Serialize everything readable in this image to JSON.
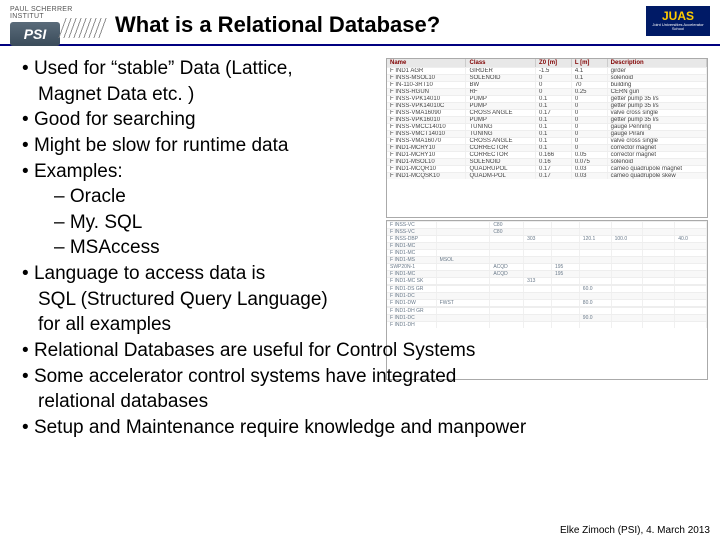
{
  "header": {
    "psi_small": "PAUL SCHERRER INSTITUT",
    "psi_mark": "PSI",
    "title": "What is a Relational Database?",
    "juas": "JUAS",
    "juas_sub": "Joint Universities Accelerator School"
  },
  "bullets": {
    "p1a": "Used for “stable” Data (Lattice,",
    "p1b": "Magnet Data etc. )",
    "p2": "Good for searching",
    "p3": "Might be slow for runtime data",
    "p4": "Examples:",
    "p4a": "Oracle",
    "p4b": "My. SQL",
    "p4c": "MSAccess",
    "p5a": "Language to access data is",
    "p5b": "SQL (Structured Query Language)",
    "p5c": "for all examples",
    "p6": "Relational Databases are useful for Control Systems",
    "p7a": "Some accelerator control systems have integrated",
    "p7b": "relational databases",
    "p8": "Setup and Maintenance require knowledge and manpower"
  },
  "footer": "Elke Zimoch (PSI), 4. March 2013",
  "table1": {
    "headers": [
      "Name",
      "Class",
      "Z0 [m]",
      "L [m]",
      "Description"
    ],
    "rows": [
      [
        "F IND1 AGR",
        "GIRDER",
        "-1.5",
        "4.1",
        "girder"
      ],
      [
        "F INSS-MSOL10",
        "SOLENOID",
        "0",
        "0.1",
        "solenoid"
      ],
      [
        "F IN-110-3RT10",
        "BW",
        "0",
        "70",
        "building"
      ],
      [
        "F INSS-RGUN",
        "RF",
        "0",
        "0.25",
        "CERN gun"
      ],
      [
        "F INSS-VPK14010",
        "PUMP",
        "0.1",
        "0",
        "getter pump 35 l/s"
      ],
      [
        "F INSS-VPK14010C",
        "PUMP",
        "0.1",
        "0",
        "getter pump 35 l/s"
      ],
      [
        "F INSS-VMA16090",
        "CROSS ANGLE",
        "0.17",
        "0",
        "valve cross single"
      ],
      [
        "F INSS-VPK16010",
        "PUMP",
        "0.1",
        "0",
        "getter pump 35 l/s"
      ],
      [
        "F INSS-VMCC14010",
        "TUNING",
        "0.1",
        "0",
        "gauge Penning"
      ],
      [
        "F INSS-VMCT14010",
        "TUNING",
        "0.1",
        "0",
        "gauge Pirani"
      ],
      [
        "F INSS-VMA16070",
        "CROSS ANGLE",
        "0.1",
        "0",
        "valve cross single"
      ],
      [
        "F IND1-MCRY10",
        "CORRECTOR",
        "0.1",
        "0",
        "corrector magnet"
      ],
      [
        "F IND1-MCRY10",
        "CORRECTOR",
        "0.166",
        "0.05",
        "corrector magnet"
      ],
      [
        "F IND1-MSOL10",
        "SOLENOID",
        "0.16",
        "0.075",
        "solenoid"
      ],
      [
        "F IND1-MCQR10",
        "QUADRUPOL",
        "0.17",
        "0.03",
        "cameo quadrupole magnet"
      ],
      [
        "F IND1-MCQSK10",
        "QUADM-POL",
        "0.17",
        "0.03",
        "cameo quadrupole skew"
      ]
    ]
  },
  "table2": {
    "rows": [
      [
        "F INSS-VC",
        "",
        "C80",
        "",
        "",
        "",
        "",
        "",
        ""
      ],
      [
        "F INSS-VC",
        "",
        "C80",
        "",
        "",
        "",
        "",
        "",
        ""
      ],
      [
        "F INSS-DBP",
        "",
        "",
        "303",
        "",
        "120.1",
        "100.0",
        "",
        "40.0"
      ],
      [
        "F IND1-MC",
        "",
        "",
        "",
        "",
        "",
        "",
        "",
        ""
      ],
      [
        "F IND1-MC",
        "",
        "",
        "",
        "",
        "",
        "",
        "",
        ""
      ],
      [
        "F IND1-MS",
        "MSOL",
        "",
        "",
        "",
        "",
        "",
        "",
        ""
      ],
      [
        "SWP20N-1",
        "",
        "ACQD",
        "",
        "195",
        "",
        "",
        "",
        ""
      ],
      [
        "F IND1-MC",
        "",
        "ACQD",
        "",
        "195",
        "",
        "",
        "",
        ""
      ],
      [
        "F IND1-MC SK",
        "",
        "",
        "313",
        "",
        "",
        "",
        "",
        ""
      ],
      [
        "",
        "",
        "",
        "",
        "",
        "",
        "",
        "",
        ""
      ],
      [
        "F IND1-DS GR",
        "",
        "",
        "",
        "",
        "60.0",
        "",
        "",
        ""
      ],
      [
        "F IND1-DC",
        "",
        "",
        "",
        "",
        "",
        "",
        "",
        ""
      ],
      [
        "F IND1-DW",
        "FWST",
        "",
        "",
        "",
        "80.0",
        "",
        "",
        ""
      ],
      [
        "",
        "",
        "",
        "",
        "",
        "",
        "",
        "",
        ""
      ],
      [
        "F IND1-DH GR",
        "",
        "",
        "",
        "",
        "",
        "",
        "",
        ""
      ],
      [
        "F IND1-DC",
        "",
        "",
        "",
        "",
        "90.0",
        "",
        "",
        ""
      ],
      [
        "F IND1-DH",
        "",
        "",
        "",
        "",
        "",
        "",
        "",
        ""
      ]
    ]
  },
  "colors": {
    "underline": "#000080",
    "table_header_text": "#800000",
    "psi_bg_top": "#5a6b7a",
    "psi_bg_bottom": "#3a4b5a",
    "juas_bg": "#001a66",
    "juas_text": "#ffcc00"
  }
}
